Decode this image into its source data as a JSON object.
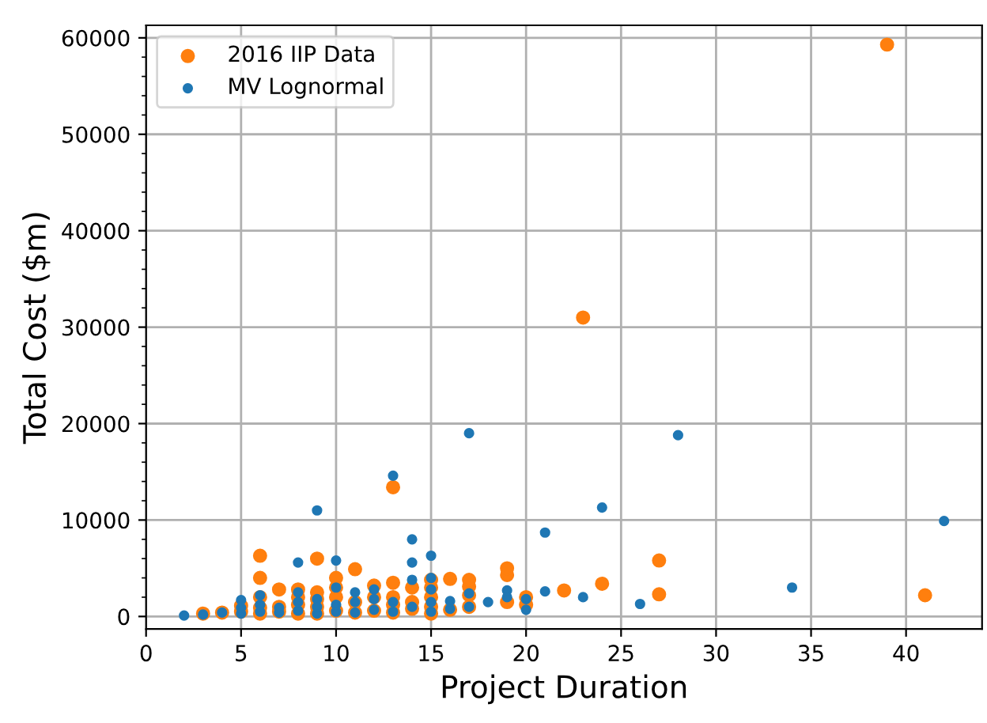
{
  "chart_data": {
    "type": "scatter",
    "xlabel": "Project Duration",
    "ylabel": "Total Cost ($m)",
    "xlim": [
      0,
      44
    ],
    "ylim": [
      -1300,
      61300
    ],
    "xticks": [
      0,
      5,
      10,
      15,
      20,
      25,
      30,
      35,
      40
    ],
    "yticks": [
      0,
      10000,
      20000,
      30000,
      40000,
      50000,
      60000
    ],
    "grid": true,
    "legend": "top left",
    "marker": "circle",
    "series": [
      {
        "name": "2016 IIP Data",
        "color": "#ff7f0e",
        "x": [
          3,
          4,
          5,
          5,
          6,
          6,
          6,
          6,
          6,
          7,
          7,
          7,
          8,
          8,
          8,
          8,
          9,
          9,
          9,
          9,
          9,
          10,
          10,
          10,
          10,
          11,
          11,
          11,
          12,
          12,
          12,
          13,
          13,
          13,
          13,
          13,
          14,
          14,
          14,
          15,
          15,
          15,
          15,
          15,
          16,
          16,
          17,
          17,
          17,
          17,
          19,
          19,
          19,
          20,
          20,
          22,
          23,
          24,
          27,
          27,
          39,
          41
        ],
        "values": [
          300,
          400,
          500,
          1100,
          300,
          900,
          2000,
          4000,
          6300,
          500,
          1000,
          2800,
          300,
          1200,
          2000,
          2800,
          300,
          1000,
          1800,
          2500,
          6000,
          600,
          2000,
          3000,
          4000,
          400,
          1500,
          4900,
          600,
          2000,
          3200,
          400,
          1200,
          2000,
          3500,
          13400,
          800,
          1500,
          3000,
          300,
          1000,
          2000,
          3000,
          3800,
          700,
          3900,
          1000,
          2200,
          3100,
          3800,
          1500,
          4300,
          5000,
          1200,
          2000,
          2700,
          31000,
          3400,
          2300,
          5800,
          59300,
          2200
        ]
      },
      {
        "name": "MV Lognormal",
        "color": "#1f77b4",
        "x": [
          2,
          3,
          4,
          5,
          5,
          5,
          6,
          6,
          6,
          7,
          7,
          8,
          8,
          8,
          8,
          9,
          9,
          9,
          9,
          10,
          10,
          10,
          10,
          11,
          11,
          11,
          12,
          12,
          12,
          13,
          13,
          13,
          14,
          14,
          14,
          14,
          15,
          15,
          15,
          15,
          15,
          16,
          16,
          17,
          17,
          17,
          18,
          19,
          19,
          20,
          20,
          21,
          21,
          23,
          24,
          26,
          28,
          34,
          42
        ],
        "values": [
          100,
          200,
          400,
          300,
          900,
          1700,
          500,
          1200,
          2200,
          400,
          900,
          600,
          1500,
          2500,
          5600,
          300,
          1000,
          1800,
          11000,
          500,
          1200,
          3000,
          5800,
          400,
          1500,
          2500,
          700,
          1800,
          2800,
          500,
          1500,
          14600,
          1000,
          3800,
          5600,
          8000,
          500,
          1500,
          2800,
          4000,
          6300,
          800,
          1600,
          1000,
          2400,
          19000,
          1500,
          2000,
          2700,
          700,
          1800,
          2600,
          8700,
          2000,
          11300,
          1300,
          18800,
          3000,
          9900
        ]
      }
    ]
  }
}
